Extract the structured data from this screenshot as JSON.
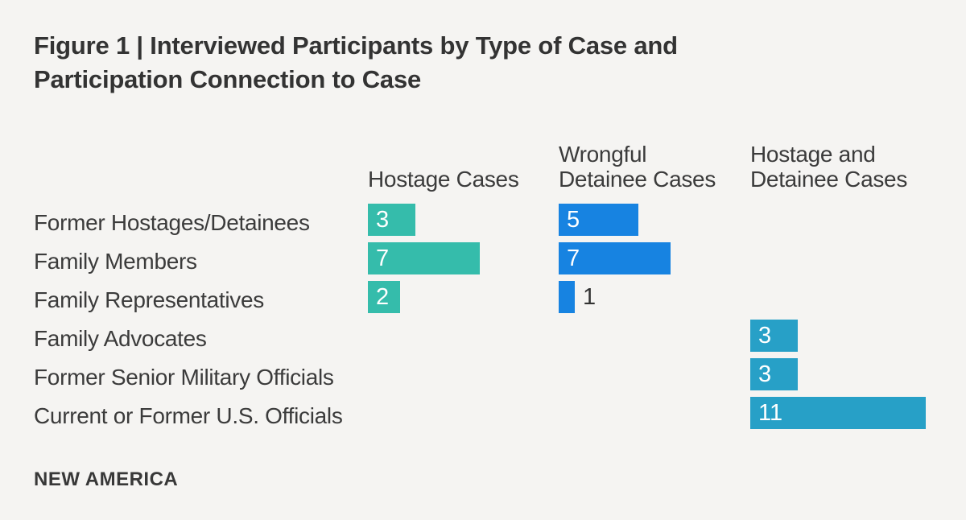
{
  "title": "Figure 1 | Interviewed Participants by Type of Case and\nParticipation Connection to Case",
  "brand": "NEW AMERICA",
  "colors": {
    "background": "#f5f4f2",
    "title_text": "#333333",
    "label_text": "#3b3b3b"
  },
  "chart_data": {
    "type": "bar",
    "orientation": "horizontal",
    "title": "Figure 1 | Interviewed Participants by Type of Case and Participation Connection to Case",
    "categories": [
      "Former Hostages/Detainees",
      "Family Members",
      "Family Representatives",
      "Family Advocates",
      "Former Senior Military Officials",
      "Current or Former U.S. Officials"
    ],
    "series": [
      {
        "name": "Hostage Cases",
        "header": "Hostage Cases",
        "color": "#35bcab",
        "values": [
          3,
          7,
          2,
          null,
          null,
          null
        ]
      },
      {
        "name": "Wrongful Detainee Cases",
        "header": "Wrongful\nDetainee Cases",
        "color": "#1783e1",
        "values": [
          5,
          7,
          1,
          null,
          null,
          null
        ]
      },
      {
        "name": "Hostage and Detainee Cases",
        "header": "Hostage and\nDetainee Cases",
        "color": "#27a0c7",
        "values": [
          null,
          null,
          null,
          3,
          3,
          11
        ]
      }
    ],
    "value_labels": {
      "inside_color": "#ffffff",
      "outside_color": "#333333"
    },
    "legend_position": "column headers above bars",
    "grid": false,
    "xlim": [
      0,
      11.5
    ]
  }
}
